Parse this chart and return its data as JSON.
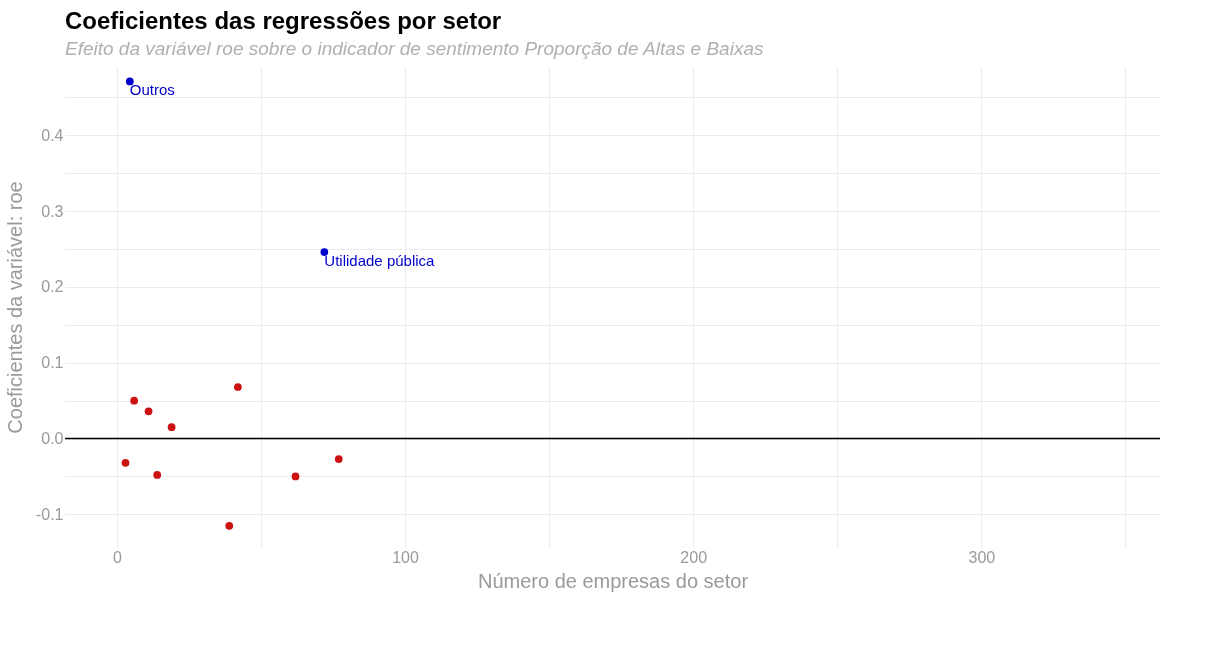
{
  "chart_data": {
    "type": "scatter",
    "title": "Coeficientes das regressões por setor",
    "subtitle": "Efeito da variável roe sobre o indicador de sentimento Proporção de Altas e Baixas",
    "xlabel": "Número de empresas do setor",
    "ylabel": "Coeficientes da variável: roe",
    "series": [
      {
        "color": "#0000cc",
        "x": [
          4.5,
          72
        ],
        "values": [
          0.471,
          0.246
        ]
      },
      {
        "color": "#cc1111",
        "x": [
          3,
          6,
          11,
          14,
          19,
          39,
          42,
          62,
          77
        ],
        "values": [
          -0.032,
          0.05,
          0.036,
          -0.048,
          0.015,
          -0.115,
          0.068,
          -0.05,
          -0.027
        ]
      }
    ],
    "annotations": [
      {
        "text": "Outros",
        "x": 4.5,
        "y": 0.471
      },
      {
        "text": "Utilidade pública",
        "x": 72,
        "y": 0.246
      }
    ],
    "ref_lines": [
      {
        "axis": "y",
        "value": 0,
        "color": "#000000"
      }
    ],
    "xlim": [
      -18,
      362
    ],
    "ylim": [
      -0.143,
      0.49
    ],
    "xticks": [
      0,
      {
        "value": 50,
        "label": null
      },
      100,
      {
        "value": 150,
        "label": null
      },
      200,
      {
        "value": 250,
        "label": null
      },
      300,
      {
        "value": 350,
        "label": null
      }
    ],
    "yticks": [
      -0.1,
      {
        "value": -0.05,
        "label": null
      },
      {
        "value": 0,
        "label": "0.0"
      },
      {
        "value": 0.05,
        "label": null
      },
      0.1,
      {
        "value": 0.15,
        "label": null
      },
      0.2,
      {
        "value": 0.25,
        "label": null
      },
      0.3,
      {
        "value": 0.35,
        "label": null
      },
      0.4,
      {
        "value": 0.45,
        "label": null
      }
    ],
    "grid": true,
    "marker": "circle"
  }
}
